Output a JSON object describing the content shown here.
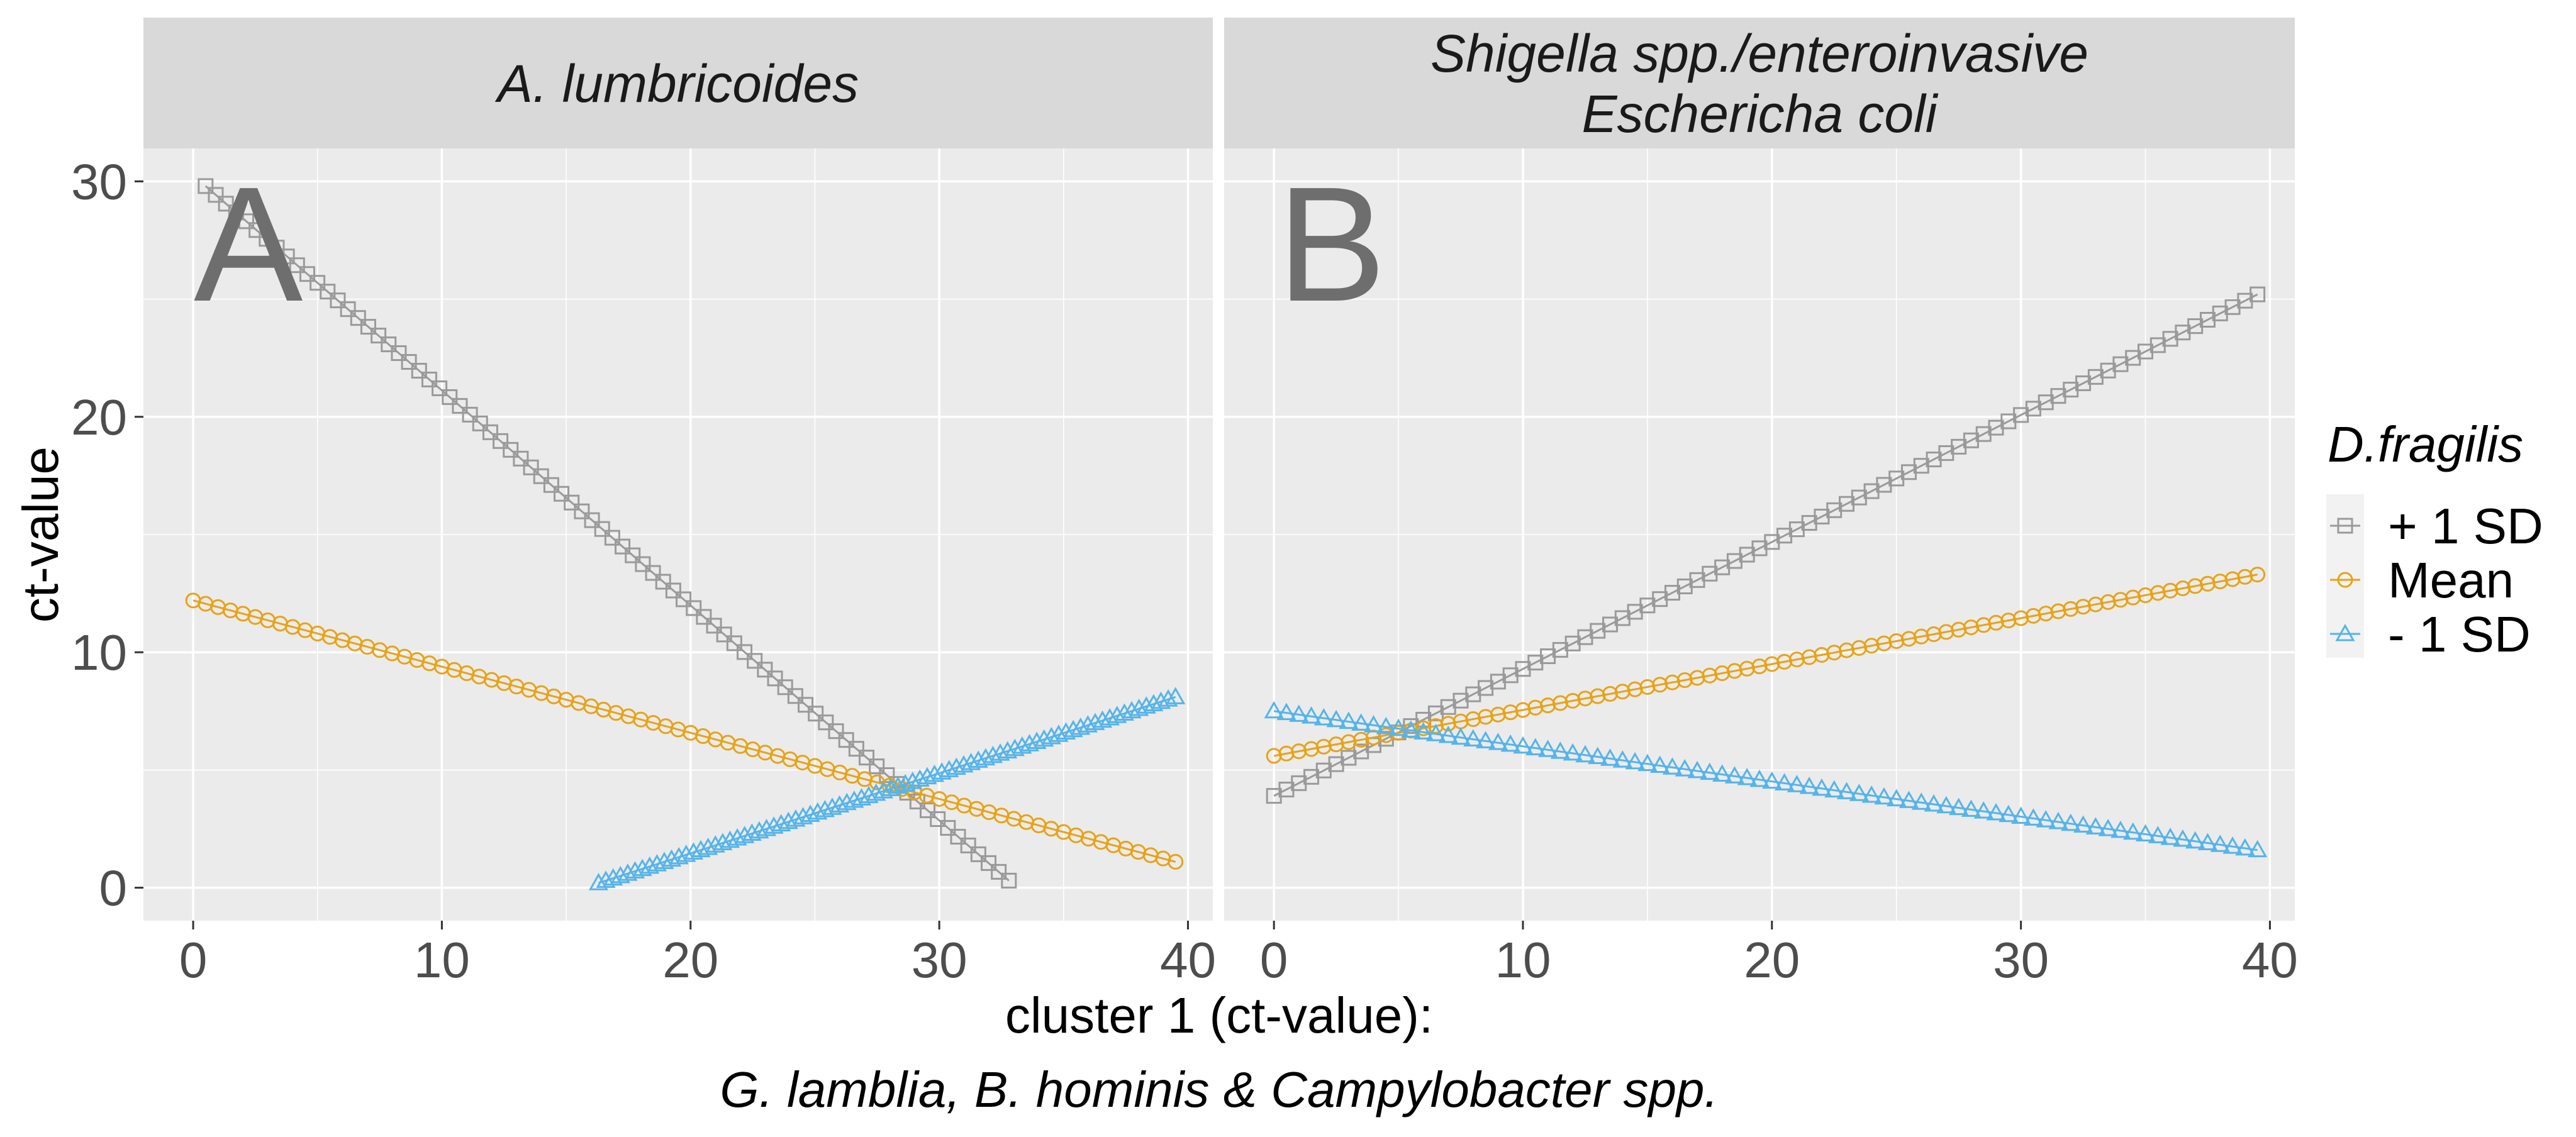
{
  "chart_data": {
    "type": "line",
    "panels": [
      {
        "id": "A",
        "strip_title_lines": [
          "A. lumbricoides"
        ],
        "letter": "A",
        "series": [
          {
            "name": "+ 1 SD",
            "x_start": 0.5,
            "y_start": 29.8,
            "x_end": 32.8,
            "y_end": 0.3
          },
          {
            "name": "Mean",
            "x_start": 0.0,
            "y_start": 12.2,
            "x_end": 39.5,
            "y_end": 1.1
          },
          {
            "name": "- 1 SD",
            "x_start": 16.3,
            "y_start": 0.2,
            "x_end": 39.5,
            "y_end": 8.1
          }
        ]
      },
      {
        "id": "B",
        "strip_title_lines": [
          "Shigella spp./enteroinvasive",
          "Eschericha coli"
        ],
        "letter": "B",
        "series": [
          {
            "name": "+ 1 SD",
            "x_start": 0.0,
            "y_start": 3.9,
            "x_end": 39.5,
            "y_end": 25.2
          },
          {
            "name": "Mean",
            "x_start": 0.0,
            "y_start": 5.6,
            "x_end": 39.5,
            "y_end": 13.3
          },
          {
            "name": "- 1 SD",
            "x_start": 0.0,
            "y_start": 7.5,
            "x_end": 39.5,
            "y_end": 1.6
          }
        ]
      }
    ],
    "xlim": [
      -2,
      41
    ],
    "ylim": [
      -1.4,
      31.4
    ],
    "x_ticks": [
      0,
      10,
      20,
      30,
      40
    ],
    "y_ticks": [
      0,
      10,
      20,
      30
    ],
    "x_tick_labels": [
      "0",
      "10",
      "20",
      "30",
      "40"
    ],
    "y_tick_labels": [
      "0",
      "10",
      "20",
      "30"
    ],
    "xlabel_lines": [
      "cluster 1 (ct-value):",
      "G. lamblia, B. hominis & Campylobacter spp."
    ],
    "ylabel": "ct-value",
    "legend": {
      "title": "D.fragilis",
      "position": "right",
      "entries": [
        "+ 1 SD",
        "Mean",
        "- 1 SD"
      ]
    },
    "n_points": 80,
    "colors": {
      "+ 1 SD": "#9a9a9a",
      "Mean": "#e8a317",
      "- 1 SD": "#56b4e9"
    },
    "markers": {
      "+ 1 SD": "square",
      "Mean": "circle",
      "- 1 SD": "triangle"
    }
  }
}
